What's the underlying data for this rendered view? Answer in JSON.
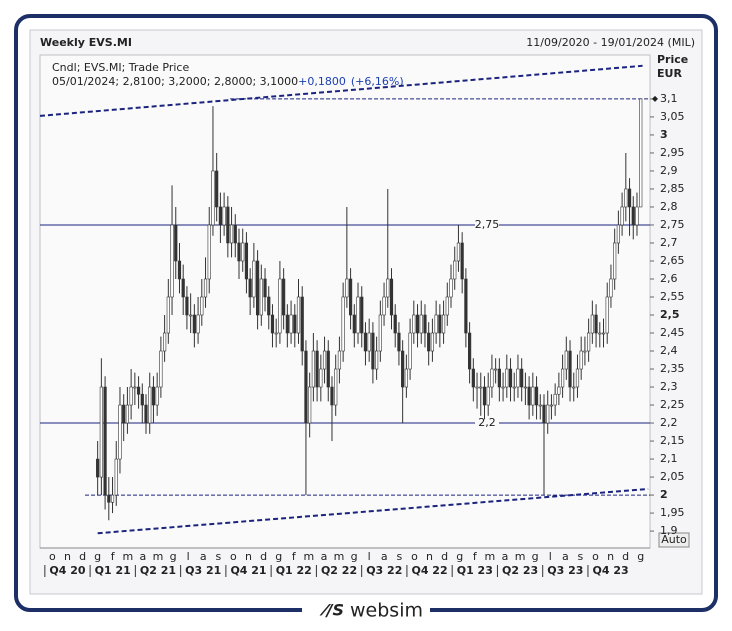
{
  "chart_data": {
    "type": "candlestick",
    "title": "Weekly EVS.MI",
    "date_range": "11/09/2020 - 19/01/2024 (MIL)",
    "info": {
      "line1": "Cndl; EVS.MI; Trade Price",
      "line2": "05/01/2024; 2,8100; 3,2000; 2,8000; 3,1000",
      "change": "+0,1800",
      "change_pct": "(+6,16%)"
    },
    "axis_title": "Price",
    "axis_unit": "EUR",
    "scale_button": "Auto",
    "months": [
      "o",
      "n",
      "d",
      "g",
      "f",
      "m",
      "a",
      "m",
      "g",
      "l",
      "a",
      "s",
      "o",
      "n",
      "d",
      "g",
      "f",
      "m",
      "a",
      "m",
      "g",
      "l",
      "a",
      "s",
      "o",
      "n",
      "d",
      "g",
      "f",
      "m",
      "a",
      "m",
      "g",
      "l",
      "a",
      "s",
      "o",
      "n",
      "d",
      "g"
    ],
    "quarters": [
      "Q4 20",
      "Q1 21",
      "Q2 21",
      "Q3 21",
      "Q4 21",
      "Q1 22",
      "Q2 22",
      "Q3 22",
      "Q4 22",
      "Q1 23",
      "Q2 23",
      "Q3 23",
      "Q4 23"
    ],
    "xlim": [
      -15.5,
      148.5
    ],
    "ylim": [
      1.853,
      3.222
    ],
    "yticks": [
      {
        "value": 1.9,
        "label": "1,9"
      },
      {
        "value": 1.95,
        "label": "1,95"
      },
      2,
      {
        "value": 2.05,
        "label": "2,05"
      },
      {
        "value": 2.1,
        "label": "2,1"
      },
      {
        "value": 2.15,
        "label": "2,15"
      },
      {
        "value": 2.2,
        "label": "2,2"
      },
      {
        "value": 2.25,
        "label": "2,25"
      },
      {
        "value": 2.3,
        "label": "2,3"
      },
      {
        "value": 2.35,
        "label": "2,35"
      },
      {
        "value": 2.4,
        "label": "2,4"
      },
      {
        "value": 2.45,
        "label": "2,45"
      },
      {
        "value": 2.5,
        "label": "2,5"
      },
      {
        "value": 2.55,
        "label": "2,55"
      },
      {
        "value": 2.6,
        "label": "2,6"
      },
      {
        "value": 2.65,
        "label": "2,65"
      },
      {
        "value": 2.7,
        "label": "2,7"
      },
      {
        "value": 2.75,
        "label": "2,75"
      },
      {
        "value": 2.8,
        "label": "2,8"
      },
      {
        "value": 2.85,
        "label": "2,85"
      },
      {
        "value": 2.9,
        "label": "2,9"
      },
      {
        "value": 2.95,
        "label": "2,95"
      },
      3,
      {
        "value": 3.05,
        "label": "3,05"
      },
      {
        "value": 3.1,
        "label": "3,1"
      }
    ],
    "levels": [
      {
        "value": 2.75,
        "label": "2,75"
      },
      {
        "value": 2.2,
        "label": "2,2"
      }
    ],
    "dashed_levels": [
      {
        "value": 3.1,
        "from": 35.6
      },
      {
        "value": 2,
        "from": -3.4
      }
    ],
    "trendlines": [
      {
        "x": [
          -15.5,
          146.5
        ],
        "y": [
          3.053,
          3.192
        ]
      },
      {
        "x": [
          0,
          148
        ],
        "y": [
          1.894,
          2.017
        ]
      }
    ],
    "candles": [
      [
        2.1,
        2.15,
        2.0,
        2.05
      ],
      [
        2.05,
        2.38,
        2.0,
        2.3
      ],
      [
        2.3,
        2.33,
        1.96,
        2.0
      ],
      [
        2.0,
        2.05,
        1.93,
        1.98
      ],
      [
        1.98,
        2.05,
        1.95,
        2.0
      ],
      [
        2.0,
        2.15,
        1.97,
        2.1
      ],
      [
        2.1,
        2.3,
        2.06,
        2.25
      ],
      [
        2.25,
        2.28,
        2.15,
        2.2
      ],
      [
        2.2,
        2.3,
        2.17,
        2.25
      ],
      [
        2.25,
        2.35,
        2.21,
        2.3
      ],
      [
        2.3,
        2.34,
        2.25,
        2.3
      ],
      [
        2.3,
        2.33,
        2.24,
        2.28
      ],
      [
        2.28,
        2.31,
        2.2,
        2.25
      ],
      [
        2.25,
        2.28,
        2.17,
        2.2
      ],
      [
        2.2,
        2.34,
        2.17,
        2.3
      ],
      [
        2.3,
        2.33,
        2.2,
        2.25
      ],
      [
        2.25,
        2.34,
        2.22,
        2.3
      ],
      [
        2.3,
        2.44,
        2.27,
        2.4
      ],
      [
        2.4,
        2.5,
        2.37,
        2.45
      ],
      [
        2.45,
        2.6,
        2.42,
        2.55
      ],
      [
        2.55,
        2.86,
        2.5,
        2.75
      ],
      [
        2.75,
        2.8,
        2.6,
        2.65
      ],
      [
        2.65,
        2.7,
        2.56,
        2.6
      ],
      [
        2.6,
        2.64,
        2.5,
        2.55
      ],
      [
        2.55,
        2.58,
        2.46,
        2.5
      ],
      [
        2.5,
        2.56,
        2.45,
        2.5
      ],
      [
        2.5,
        2.53,
        2.41,
        2.45
      ],
      [
        2.45,
        2.55,
        2.42,
        2.5
      ],
      [
        2.5,
        2.6,
        2.47,
        2.55
      ],
      [
        2.55,
        2.66,
        2.52,
        2.6
      ],
      [
        2.6,
        2.8,
        2.56,
        2.75
      ],
      [
        2.75,
        3.08,
        2.72,
        2.9
      ],
      [
        2.9,
        2.95,
        2.76,
        2.8
      ],
      [
        2.8,
        2.84,
        2.7,
        2.75
      ],
      [
        2.75,
        2.84,
        2.72,
        2.8
      ],
      [
        2.8,
        2.83,
        2.66,
        2.7
      ],
      [
        2.7,
        2.8,
        2.66,
        2.75
      ],
      [
        2.75,
        2.78,
        2.66,
        2.7
      ],
      [
        2.7,
        2.74,
        2.6,
        2.65
      ],
      [
        2.65,
        2.74,
        2.62,
        2.7
      ],
      [
        2.7,
        2.73,
        2.56,
        2.6
      ],
      [
        2.6,
        2.63,
        2.5,
        2.55
      ],
      [
        2.55,
        2.7,
        2.52,
        2.65
      ],
      [
        2.65,
        2.68,
        2.46,
        2.5
      ],
      [
        2.5,
        2.64,
        2.47,
        2.6
      ],
      [
        2.6,
        2.63,
        2.51,
        2.55
      ],
      [
        2.55,
        2.58,
        2.46,
        2.5
      ],
      [
        2.5,
        2.53,
        2.41,
        2.45
      ],
      [
        2.45,
        2.49,
        2.41,
        2.45
      ],
      [
        2.45,
        2.65,
        2.42,
        2.6
      ],
      [
        2.6,
        2.63,
        2.46,
        2.5
      ],
      [
        2.5,
        2.53,
        2.41,
        2.45
      ],
      [
        2.45,
        2.54,
        2.42,
        2.5
      ],
      [
        2.5,
        2.53,
        2.41,
        2.45
      ],
      [
        2.45,
        2.6,
        2.42,
        2.55
      ],
      [
        2.55,
        2.58,
        2.36,
        2.4
      ],
      [
        2.4,
        2.43,
        2.0,
        2.2
      ],
      [
        2.2,
        2.34,
        2.16,
        2.3
      ],
      [
        2.3,
        2.45,
        2.26,
        2.4
      ],
      [
        2.4,
        2.43,
        2.26,
        2.3
      ],
      [
        2.3,
        2.39,
        2.26,
        2.35
      ],
      [
        2.35,
        2.44,
        2.31,
        2.4
      ],
      [
        2.4,
        2.43,
        2.26,
        2.3
      ],
      [
        2.3,
        2.33,
        2.15,
        2.25
      ],
      [
        2.25,
        2.39,
        2.22,
        2.35
      ],
      [
        2.35,
        2.44,
        2.31,
        2.4
      ],
      [
        2.4,
        2.59,
        2.37,
        2.55
      ],
      [
        2.55,
        2.8,
        2.52,
        2.6
      ],
      [
        2.6,
        2.63,
        2.46,
        2.5
      ],
      [
        2.5,
        2.53,
        2.41,
        2.45
      ],
      [
        2.45,
        2.59,
        2.42,
        2.55
      ],
      [
        2.55,
        2.58,
        2.41,
        2.45
      ],
      [
        2.45,
        2.48,
        2.36,
        2.4
      ],
      [
        2.4,
        2.49,
        2.37,
        2.45
      ],
      [
        2.45,
        2.48,
        2.31,
        2.35
      ],
      [
        2.35,
        2.44,
        2.32,
        2.4
      ],
      [
        2.4,
        2.54,
        2.37,
        2.5
      ],
      [
        2.5,
        2.59,
        2.47,
        2.55
      ],
      [
        2.55,
        2.85,
        2.52,
        2.6
      ],
      [
        2.6,
        2.63,
        2.46,
        2.5
      ],
      [
        2.5,
        2.53,
        2.41,
        2.45
      ],
      [
        2.45,
        2.48,
        2.36,
        2.4
      ],
      [
        2.4,
        2.43,
        2.2,
        2.3
      ],
      [
        2.3,
        2.39,
        2.27,
        2.35
      ],
      [
        2.35,
        2.49,
        2.32,
        2.45
      ],
      [
        2.45,
        2.54,
        2.42,
        2.5
      ],
      [
        2.5,
        2.53,
        2.41,
        2.45
      ],
      [
        2.45,
        2.54,
        2.42,
        2.5
      ],
      [
        2.5,
        2.53,
        2.41,
        2.45
      ],
      [
        2.45,
        2.48,
        2.36,
        2.4
      ],
      [
        2.4,
        2.49,
        2.37,
        2.45
      ],
      [
        2.45,
        2.54,
        2.42,
        2.5
      ],
      [
        2.5,
        2.53,
        2.41,
        2.45
      ],
      [
        2.45,
        2.54,
        2.42,
        2.5
      ],
      [
        2.5,
        2.59,
        2.47,
        2.55
      ],
      [
        2.55,
        2.64,
        2.52,
        2.6
      ],
      [
        2.6,
        2.69,
        2.57,
        2.65
      ],
      [
        2.65,
        2.75,
        2.62,
        2.7
      ],
      [
        2.7,
        2.73,
        2.56,
        2.6
      ],
      [
        2.6,
        2.63,
        2.41,
        2.45
      ],
      [
        2.45,
        2.48,
        2.31,
        2.35
      ],
      [
        2.35,
        2.38,
        2.26,
        2.3
      ],
      [
        2.3,
        2.34,
        2.24,
        2.3
      ],
      [
        2.3,
        2.34,
        2.22,
        2.3
      ],
      [
        2.3,
        2.33,
        2.21,
        2.25
      ],
      [
        2.25,
        2.34,
        2.22,
        2.3
      ],
      [
        2.3,
        2.39,
        2.27,
        2.35
      ],
      [
        2.35,
        2.38,
        2.31,
        2.35
      ],
      [
        2.35,
        2.38,
        2.26,
        2.3
      ],
      [
        2.3,
        2.34,
        2.26,
        2.3
      ],
      [
        2.3,
        2.39,
        2.27,
        2.35
      ],
      [
        2.35,
        2.38,
        2.26,
        2.3
      ],
      [
        2.3,
        2.34,
        2.26,
        2.3
      ],
      [
        2.3,
        2.39,
        2.27,
        2.35
      ],
      [
        2.35,
        2.38,
        2.26,
        2.3
      ],
      [
        2.3,
        2.34,
        2.25,
        2.3
      ],
      [
        2.3,
        2.33,
        2.21,
        2.25
      ],
      [
        2.25,
        2.34,
        2.22,
        2.3
      ],
      [
        2.3,
        2.33,
        2.21,
        2.25
      ],
      [
        2.25,
        2.28,
        2.21,
        2.25
      ],
      [
        2.25,
        2.28,
        2.0,
        2.2
      ],
      [
        2.2,
        2.29,
        2.17,
        2.25
      ],
      [
        2.25,
        2.28,
        2.21,
        2.25
      ],
      [
        2.25,
        2.31,
        2.22,
        2.28
      ],
      [
        2.28,
        2.34,
        2.25,
        2.3
      ],
      [
        2.3,
        2.39,
        2.27,
        2.35
      ],
      [
        2.35,
        2.44,
        2.32,
        2.4
      ],
      [
        2.4,
        2.43,
        2.26,
        2.3
      ],
      [
        2.3,
        2.34,
        2.26,
        2.3
      ],
      [
        2.3,
        2.39,
        2.27,
        2.35
      ],
      [
        2.35,
        2.44,
        2.32,
        2.4
      ],
      [
        2.4,
        2.44,
        2.36,
        2.4
      ],
      [
        2.4,
        2.49,
        2.37,
        2.45
      ],
      [
        2.45,
        2.54,
        2.42,
        2.5
      ],
      [
        2.5,
        2.53,
        2.41,
        2.45
      ],
      [
        2.45,
        2.48,
        2.41,
        2.45
      ],
      [
        2.45,
        2.49,
        2.41,
        2.45
      ],
      [
        2.45,
        2.59,
        2.42,
        2.55
      ],
      [
        2.55,
        2.64,
        2.52,
        2.6
      ],
      [
        2.6,
        2.74,
        2.57,
        2.7
      ],
      [
        2.7,
        2.79,
        2.67,
        2.75
      ],
      [
        2.75,
        2.84,
        2.72,
        2.8
      ],
      [
        2.8,
        2.95,
        2.76,
        2.85
      ],
      [
        2.85,
        2.88,
        2.72,
        2.8
      ],
      [
        2.8,
        2.83,
        2.71,
        2.75
      ],
      [
        2.75,
        2.84,
        2.72,
        2.8
      ],
      [
        2.8,
        3.1,
        2.8,
        3.1
      ]
    ],
    "up_color": "#ffffff",
    "down_color": "#333333",
    "line_color": "#333333",
    "level_color": "#1a237e"
  },
  "footer": {
    "logo": "websim"
  }
}
